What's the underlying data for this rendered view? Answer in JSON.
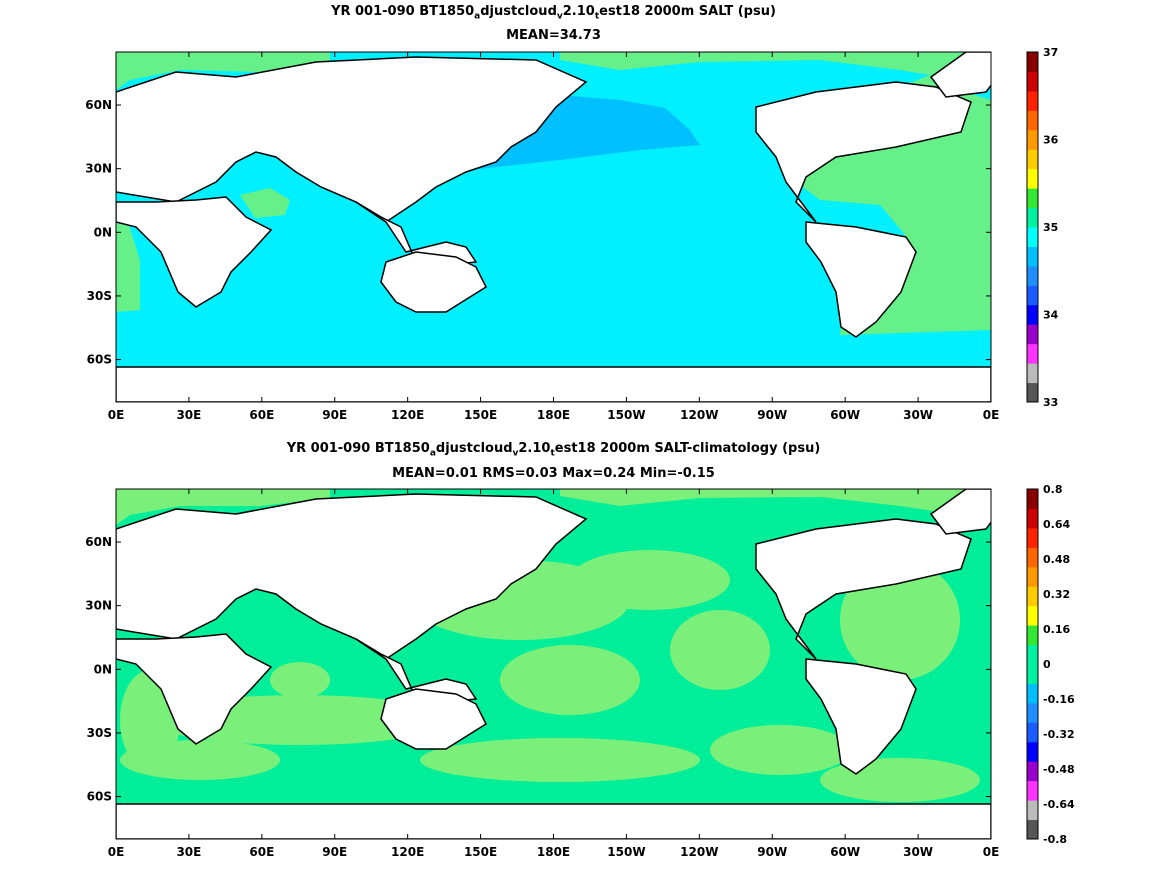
{
  "panels": [
    {
      "title_parts": [
        "YR 001-090 BT1850",
        "a",
        "djustcloud",
        "v",
        "2.10",
        "t",
        "est18 2000m SALT (psu)"
      ],
      "subtitle": "MEAN=34.73",
      "colorbar": {
        "labels": [
          "37",
          "36",
          "35",
          "34",
          "33"
        ],
        "colors": [
          "#555555",
          "#bbbbbb",
          "#ff33ff",
          "#9900cc",
          "#0000ff",
          "#1a5cff",
          "#1f8fff",
          "#00bfff",
          "#00ffff",
          "#00f2a0",
          "#33e833",
          "#ffff00",
          "#ffcc00",
          "#ff9900",
          "#ff6600",
          "#ff2200",
          "#cc0000",
          "#880000"
        ]
      }
    },
    {
      "title_parts": [
        "YR 001-090 BT1850",
        "a",
        "djustcloud",
        "v",
        "2.10",
        "t",
        "est18 2000m SALT-climatology (psu)"
      ],
      "subtitle": "MEAN=0.01   RMS=0.03   Max=0.24   Min=-0.15",
      "colorbar": {
        "labels": [
          "0.8",
          "0.64",
          "0.48",
          "0.32",
          "0.16",
          "0",
          "-0.16",
          "-0.32",
          "-0.48",
          "-0.64",
          "-0.8"
        ],
        "colors": [
          "#555555",
          "#bbbbbb",
          "#ff33ff",
          "#9900cc",
          "#0000ff",
          "#1a5cff",
          "#1f8fff",
          "#00bfff",
          "#00f2a0",
          "#00f2a0",
          "#33e833",
          "#ffff00",
          "#ffcc00",
          "#ff9900",
          "#ff6600",
          "#ff2200",
          "#cc0000",
          "#880000"
        ]
      }
    }
  ],
  "axes": {
    "lon_labels": [
      "0E",
      "30E",
      "60E",
      "90E",
      "120E",
      "150E",
      "180E",
      "150W",
      "120W",
      "90W",
      "60W",
      "30W",
      "0E"
    ],
    "lat_labels": [
      "60N",
      "30N",
      "0N",
      "30S",
      "60S"
    ]
  },
  "colors": {
    "land": "#ffffff",
    "coast": "#000000",
    "ocean_top": "#00f0ff",
    "north_pacific_top": "#00c0ff",
    "atlantic_top": "#66f08a",
    "ocean_bottom": "#00ee99",
    "anomaly_light": "#7af07a",
    "anomaly_yellow": "#ffff00"
  }
}
